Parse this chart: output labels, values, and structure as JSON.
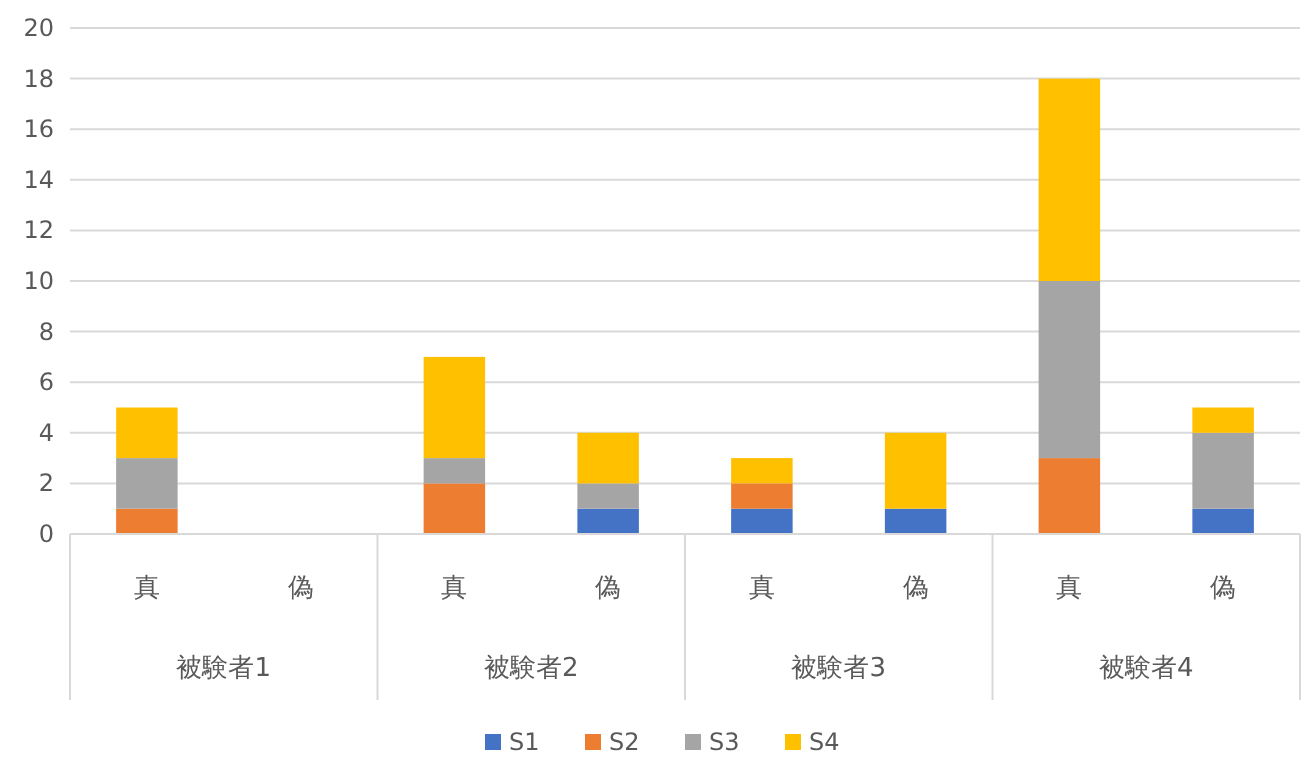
{
  "chart_data": {
    "type": "bar",
    "stacked": true,
    "categories": [
      "真",
      "偽",
      "真",
      "偽",
      "真",
      "偽",
      "真",
      "偽"
    ],
    "annotations": [
      "被験者1",
      "被験者2",
      "被験者3",
      "被験者4"
    ],
    "series": [
      {
        "name": "S1",
        "color": "#4472c4",
        "values": [
          0,
          0,
          0,
          1,
          1,
          1,
          0,
          1
        ]
      },
      {
        "name": "S2",
        "color": "#ed7d31",
        "values": [
          1,
          0,
          2,
          0,
          1,
          0,
          3,
          0
        ]
      },
      {
        "name": "S3",
        "color": "#a5a5a5",
        "values": [
          2,
          0,
          1,
          1,
          0,
          0,
          7,
          3
        ]
      },
      {
        "name": "S4",
        "color": "#ffc000",
        "values": [
          2,
          0,
          4,
          2,
          1,
          3,
          8,
          1
        ]
      }
    ],
    "ylim": [
      0,
      20
    ],
    "yticks": [
      0,
      2,
      4,
      6,
      8,
      10,
      12,
      14,
      16,
      18,
      20
    ],
    "grid": "y",
    "legend": "bottom"
  }
}
